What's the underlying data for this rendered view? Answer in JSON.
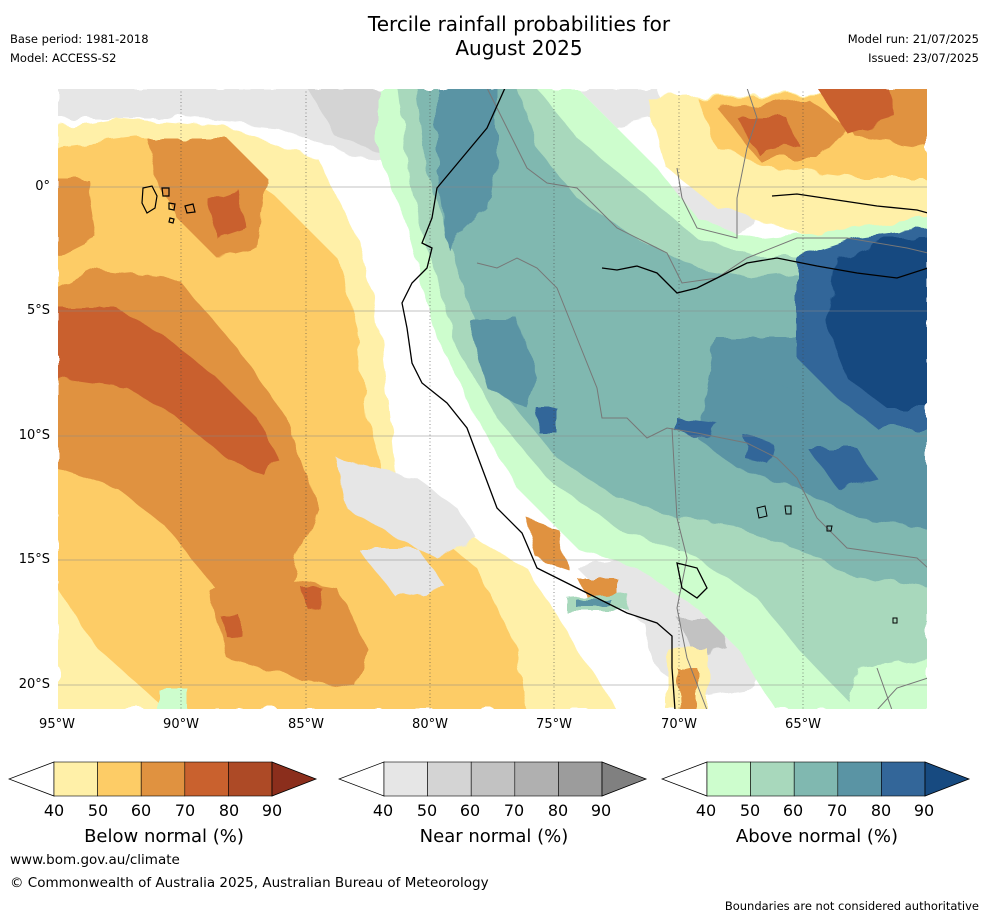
{
  "header": {
    "title_line1": "Tercile rainfall probabilities for",
    "title_line2": "August 2025",
    "base_period": "Base period: 1981-2018",
    "model": "Model: ACCESS-S2",
    "model_run": "Model run: 21/07/2025",
    "issued": "Issued: 23/07/2025"
  },
  "map": {
    "lat_labels": [
      "0°",
      "5°S",
      "10°S",
      "15°S",
      "20°S"
    ],
    "lon_labels": [
      "95°W",
      "90°W",
      "85°W",
      "80°W",
      "75°W",
      "70°W",
      "65°W"
    ],
    "colors": {
      "below": [
        "#fff0a8",
        "#fdcc66",
        "#e09240",
        "#c9612e",
        "#ad4a26",
        "#8b2e1c"
      ],
      "near": [
        "#e6e6e6",
        "#d4d4d4",
        "#c2c2c2",
        "#b0b0b0",
        "#9c9c9c",
        "#808080"
      ],
      "above": [
        "#cdfdcd",
        "#a8d8bc",
        "#80b8b0",
        "#5a94a4",
        "#336699",
        "#174a80"
      ]
    }
  },
  "legend": {
    "ticks": [
      "40",
      "50",
      "60",
      "70",
      "80",
      "90"
    ],
    "below_title": "Below normal (%)",
    "near_title": "Near normal (%)",
    "above_title": "Above normal (%)"
  },
  "footer": {
    "website": "www.bom.gov.au/climate",
    "copyright": "© Commonwealth of Australia 2025, Australian Bureau of Meteorology",
    "disclaimer": "Boundaries are not considered authoritative"
  }
}
